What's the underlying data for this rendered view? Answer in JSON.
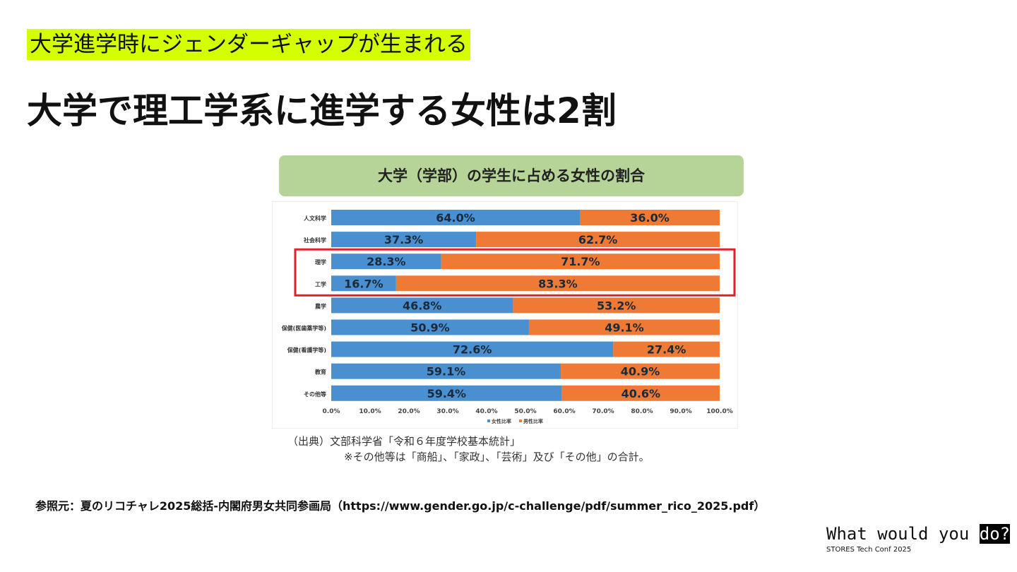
{
  "slide": {
    "tag": "大学進学時にジェンダーギャップが生まれる",
    "title": "大学で理工学系に進学する女性は2割",
    "source_line1": "（出典）文部科学省「令和６年度学校基本統計」",
    "source_line2": "※その他等は「商船」、「家政」、「芸術」及び「その他」の合計。",
    "reference": "参照元：夏のリコチャレ2025総括-内閣府男女共同参画局（https://www.gender.go.jp/c-challenge/pdf/summer_rico_2025.pdf）",
    "logo_text": "What would you ",
    "logo_highlight": "do?",
    "logo_sub": "STORES Tech Conf 2025"
  },
  "chart_data": {
    "type": "bar",
    "stacked": true,
    "orientation": "horizontal",
    "title": "大学（学部）の学生に占める女性の割合",
    "categories": [
      "人文科学",
      "社会科学",
      "理学",
      "工学",
      "農学",
      "保健(医歯薬学等)",
      "保健(看護学等)",
      "教育",
      "その他等"
    ],
    "series": [
      {
        "name": "女性比率",
        "color": "#4a8fd0",
        "values": [
          64.0,
          37.3,
          28.3,
          16.7,
          46.8,
          50.9,
          72.6,
          59.1,
          59.4
        ]
      },
      {
        "name": "男性比率",
        "color": "#ee7a35",
        "values": [
          36.0,
          62.7,
          71.7,
          83.3,
          53.2,
          49.1,
          27.4,
          40.9,
          40.6
        ]
      }
    ],
    "xlim": [
      0,
      100
    ],
    "xticks": [
      "0.0%",
      "10.0%",
      "20.0%",
      "30.0%",
      "40.0%",
      "50.0%",
      "60.0%",
      "70.0%",
      "80.0%",
      "90.0%",
      "100.0%"
    ],
    "highlighted": [
      "理学",
      "工学"
    ],
    "highlight_color": "#e0202a",
    "legend": "bottom"
  }
}
